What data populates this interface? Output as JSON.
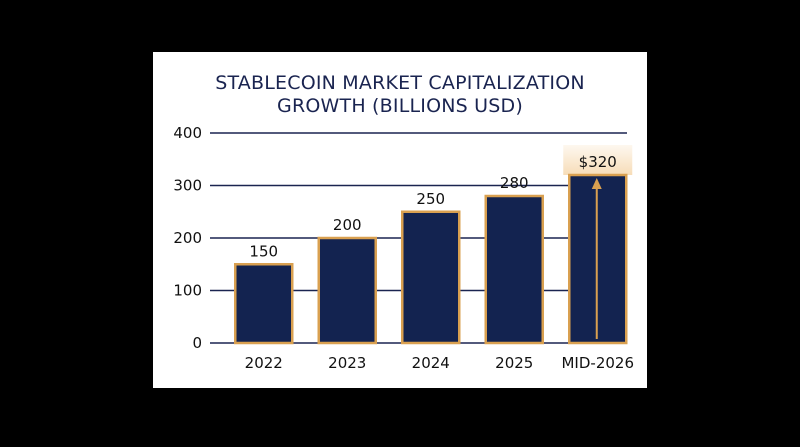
{
  "chart_data": {
    "type": "bar",
    "title_lines": [
      "STABLECOIN MARKET CAPITALIZATION",
      "GROWTH (BILLIONS USD)"
    ],
    "categories": [
      "2022",
      "2023",
      "2024",
      "2025",
      "MID-2026"
    ],
    "values": [
      150,
      200,
      250,
      280,
      320
    ],
    "data_labels": [
      "150",
      "200",
      "250",
      "280",
      "$320"
    ],
    "yticks": [
      "0",
      "100",
      "200",
      "300",
      "400"
    ],
    "ylim": [
      0,
      400
    ],
    "grid": true,
    "highlight_index": 4,
    "colors": {
      "bar_fill": "#132350",
      "bar_border": "#d9a050",
      "highlight_glow": "#f6d9b0",
      "gridline": "#1a2450",
      "title": "#1a2450",
      "arrow": "#d9a050"
    }
  }
}
